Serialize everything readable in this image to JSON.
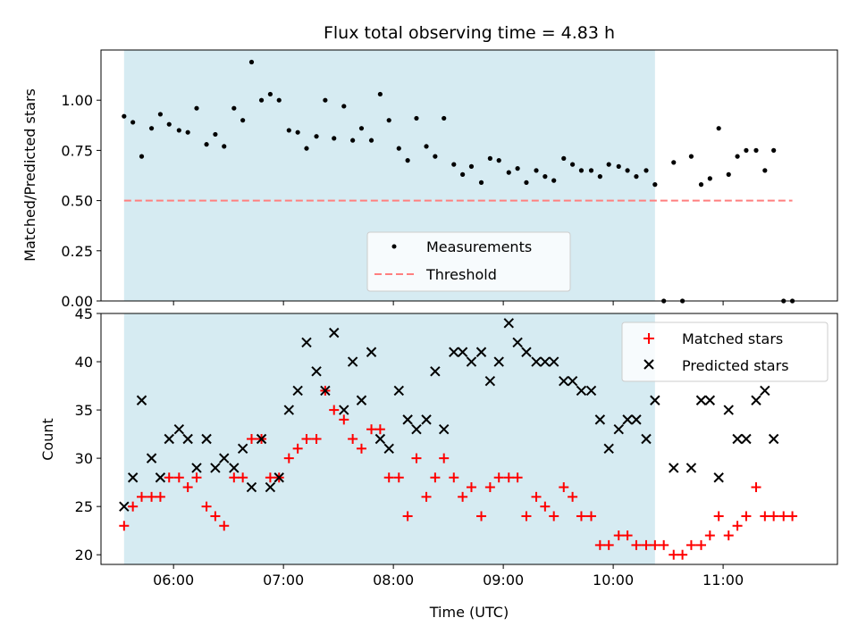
{
  "chart_data": {
    "title": "Flux total observing time = 4.83 h",
    "xlabel": "Time (UTC)",
    "x_units": "hours (UTC, decimal)",
    "xlim": [
      5.34,
      12.04
    ],
    "xticks": [
      {
        "value": 6,
        "label": "06:00"
      },
      {
        "value": 7,
        "label": "07:00"
      },
      {
        "value": 8,
        "label": "08:00"
      },
      {
        "value": 9,
        "label": "09:00"
      },
      {
        "value": 10,
        "label": "10:00"
      },
      {
        "value": 11,
        "label": "11:00"
      }
    ],
    "shaded_span": [
      5.55,
      10.38
    ],
    "shade_color": "#add8e6",
    "charts": [
      {
        "type": "scatter",
        "ylabel": "Matched/Predicted stars",
        "ylim": [
          0,
          1.25
        ],
        "yticks": [
          0,
          0.25,
          0.5,
          0.75,
          1.0
        ],
        "ytick_labels": [
          "0.00",
          "0.25",
          "0.50",
          "0.75",
          "1.00"
        ],
        "legend_position": "lower-center",
        "series": [
          {
            "name": "Measurements",
            "marker": "dot",
            "color": "#000000",
            "points": [
              [
                5.55,
                0.92
              ],
              [
                5.63,
                0.89
              ],
              [
                5.71,
                0.72
              ],
              [
                5.8,
                0.86
              ],
              [
                5.88,
                0.93
              ],
              [
                5.96,
                0.88
              ],
              [
                6.05,
                0.85
              ],
              [
                6.13,
                0.84
              ],
              [
                6.21,
                0.96
              ],
              [
                6.3,
                0.78
              ],
              [
                6.38,
                0.83
              ],
              [
                6.46,
                0.77
              ],
              [
                6.55,
                0.96
              ],
              [
                6.63,
                0.9
              ],
              [
                6.71,
                1.19
              ],
              [
                6.8,
                1.0
              ],
              [
                6.88,
                1.03
              ],
              [
                6.96,
                1.0
              ],
              [
                7.05,
                0.85
              ],
              [
                7.13,
                0.84
              ],
              [
                7.21,
                0.76
              ],
              [
                7.3,
                0.82
              ],
              [
                7.38,
                1.0
              ],
              [
                7.46,
                0.81
              ],
              [
                7.55,
                0.97
              ],
              [
                7.63,
                0.8
              ],
              [
                7.71,
                0.86
              ],
              [
                7.8,
                0.8
              ],
              [
                7.88,
                1.03
              ],
              [
                7.96,
                0.9
              ],
              [
                8.05,
                0.76
              ],
              [
                8.13,
                0.7
              ],
              [
                8.21,
                0.91
              ],
              [
                8.3,
                0.77
              ],
              [
                8.38,
                0.72
              ],
              [
                8.46,
                0.91
              ],
              [
                8.55,
                0.68
              ],
              [
                8.63,
                0.63
              ],
              [
                8.71,
                0.67
              ],
              [
                8.8,
                0.59
              ],
              [
                8.88,
                0.71
              ],
              [
                8.96,
                0.7
              ],
              [
                9.05,
                0.64
              ],
              [
                9.13,
                0.66
              ],
              [
                9.21,
                0.59
              ],
              [
                9.3,
                0.65
              ],
              [
                9.38,
                0.62
              ],
              [
                9.46,
                0.6
              ],
              [
                9.55,
                0.71
              ],
              [
                9.63,
                0.68
              ],
              [
                9.71,
                0.65
              ],
              [
                9.8,
                0.65
              ],
              [
                9.88,
                0.62
              ],
              [
                9.96,
                0.68
              ],
              [
                10.05,
                0.67
              ],
              [
                10.13,
                0.65
              ],
              [
                10.21,
                0.62
              ],
              [
                10.3,
                0.65
              ],
              [
                10.38,
                0.58
              ],
              [
                10.46,
                0.0
              ],
              [
                10.55,
                0.69
              ],
              [
                10.63,
                0.0
              ],
              [
                10.71,
                0.72
              ],
              [
                10.8,
                0.58
              ],
              [
                10.88,
                0.61
              ],
              [
                10.96,
                0.86
              ],
              [
                11.05,
                0.63
              ],
              [
                11.13,
                0.72
              ],
              [
                11.21,
                0.75
              ],
              [
                11.3,
                0.75
              ],
              [
                11.38,
                0.65
              ],
              [
                11.46,
                0.75
              ],
              [
                11.55,
                0.0
              ],
              [
                11.63,
                0.0
              ]
            ]
          },
          {
            "name": "Threshold",
            "marker": "dashed-line",
            "color": "#ff7f7f",
            "points": [
              [
                5.55,
                0.5
              ],
              [
                11.63,
                0.5
              ]
            ]
          }
        ]
      },
      {
        "type": "scatter",
        "ylabel": "Count",
        "ylim": [
          19,
          45
        ],
        "yticks": [
          20,
          25,
          30,
          35,
          40,
          45
        ],
        "ytick_labels": [
          "20",
          "25",
          "30",
          "35",
          "40",
          "45"
        ],
        "legend_position": "top-right",
        "series": [
          {
            "name": "Matched stars",
            "marker": "plus",
            "color": "#ff0000",
            "points": [
              [
                5.55,
                23
              ],
              [
                5.63,
                25
              ],
              [
                5.71,
                26
              ],
              [
                5.8,
                26
              ],
              [
                5.88,
                26
              ],
              [
                5.96,
                28
              ],
              [
                6.05,
                28
              ],
              [
                6.13,
                27
              ],
              [
                6.21,
                28
              ],
              [
                6.3,
                25
              ],
              [
                6.38,
                24
              ],
              [
                6.46,
                23
              ],
              [
                6.55,
                28
              ],
              [
                6.63,
                28
              ],
              [
                6.71,
                32
              ],
              [
                6.8,
                32
              ],
              [
                6.88,
                28
              ],
              [
                6.96,
                28
              ],
              [
                7.05,
                30
              ],
              [
                7.13,
                31
              ],
              [
                7.21,
                32
              ],
              [
                7.3,
                32
              ],
              [
                7.38,
                37
              ],
              [
                7.46,
                35
              ],
              [
                7.55,
                34
              ],
              [
                7.63,
                32
              ],
              [
                7.71,
                31
              ],
              [
                7.8,
                33
              ],
              [
                7.88,
                33
              ],
              [
                7.96,
                28
              ],
              [
                8.05,
                28
              ],
              [
                8.13,
                24
              ],
              [
                8.21,
                30
              ],
              [
                8.3,
                26
              ],
              [
                8.38,
                28
              ],
              [
                8.46,
                30
              ],
              [
                8.55,
                28
              ],
              [
                8.63,
                26
              ],
              [
                8.71,
                27
              ],
              [
                8.8,
                24
              ],
              [
                8.88,
                27
              ],
              [
                8.96,
                28
              ],
              [
                9.05,
                28
              ],
              [
                9.13,
                28
              ],
              [
                9.21,
                24
              ],
              [
                9.3,
                26
              ],
              [
                9.38,
                25
              ],
              [
                9.46,
                24
              ],
              [
                9.55,
                27
              ],
              [
                9.63,
                26
              ],
              [
                9.71,
                24
              ],
              [
                9.8,
                24
              ],
              [
                9.88,
                21
              ],
              [
                9.96,
                21
              ],
              [
                10.05,
                22
              ],
              [
                10.13,
                22
              ],
              [
                10.21,
                21
              ],
              [
                10.3,
                21
              ],
              [
                10.38,
                21
              ],
              [
                10.46,
                21
              ],
              [
                10.55,
                20
              ],
              [
                10.63,
                20
              ],
              [
                10.71,
                21
              ],
              [
                10.8,
                21
              ],
              [
                10.88,
                22
              ],
              [
                10.96,
                24
              ],
              [
                11.05,
                22
              ],
              [
                11.13,
                23
              ],
              [
                11.21,
                24
              ],
              [
                11.3,
                27
              ],
              [
                11.38,
                24
              ],
              [
                11.46,
                24
              ],
              [
                11.55,
                24
              ],
              [
                11.63,
                24
              ]
            ]
          },
          {
            "name": "Predicted stars",
            "marker": "x",
            "color": "#000000",
            "points": [
              [
                5.55,
                25
              ],
              [
                5.63,
                28
              ],
              [
                5.71,
                36
              ],
              [
                5.8,
                30
              ],
              [
                5.88,
                28
              ],
              [
                5.96,
                32
              ],
              [
                6.05,
                33
              ],
              [
                6.13,
                32
              ],
              [
                6.21,
                29
              ],
              [
                6.3,
                32
              ],
              [
                6.38,
                29
              ],
              [
                6.46,
                30
              ],
              [
                6.55,
                29
              ],
              [
                6.63,
                31
              ],
              [
                6.71,
                27
              ],
              [
                6.8,
                32
              ],
              [
                6.88,
                27
              ],
              [
                6.96,
                28
              ],
              [
                7.05,
                35
              ],
              [
                7.13,
                37
              ],
              [
                7.21,
                42
              ],
              [
                7.3,
                39
              ],
              [
                7.38,
                37
              ],
              [
                7.46,
                43
              ],
              [
                7.55,
                35
              ],
              [
                7.63,
                40
              ],
              [
                7.71,
                36
              ],
              [
                7.8,
                41
              ],
              [
                7.88,
                32
              ],
              [
                7.96,
                31
              ],
              [
                8.05,
                37
              ],
              [
                8.13,
                34
              ],
              [
                8.21,
                33
              ],
              [
                8.3,
                34
              ],
              [
                8.38,
                39
              ],
              [
                8.46,
                33
              ],
              [
                8.55,
                41
              ],
              [
                8.63,
                41
              ],
              [
                8.71,
                40
              ],
              [
                8.8,
                41
              ],
              [
                8.88,
                38
              ],
              [
                8.96,
                40
              ],
              [
                9.05,
                44
              ],
              [
                9.13,
                42
              ],
              [
                9.21,
                41
              ],
              [
                9.3,
                40
              ],
              [
                9.38,
                40
              ],
              [
                9.46,
                40
              ],
              [
                9.55,
                38
              ],
              [
                9.63,
                38
              ],
              [
                9.71,
                37
              ],
              [
                9.8,
                37
              ],
              [
                9.88,
                34
              ],
              [
                9.96,
                31
              ],
              [
                10.05,
                33
              ],
              [
                10.13,
                34
              ],
              [
                10.21,
                34
              ],
              [
                10.3,
                32
              ],
              [
                10.38,
                36
              ],
              [
                10.55,
                29
              ],
              [
                10.71,
                29
              ],
              [
                10.8,
                36
              ],
              [
                10.88,
                36
              ],
              [
                10.96,
                28
              ],
              [
                11.05,
                35
              ],
              [
                11.13,
                32
              ],
              [
                11.21,
                32
              ],
              [
                11.3,
                36
              ],
              [
                11.38,
                37
              ],
              [
                11.46,
                32
              ]
            ]
          }
        ]
      }
    ]
  }
}
